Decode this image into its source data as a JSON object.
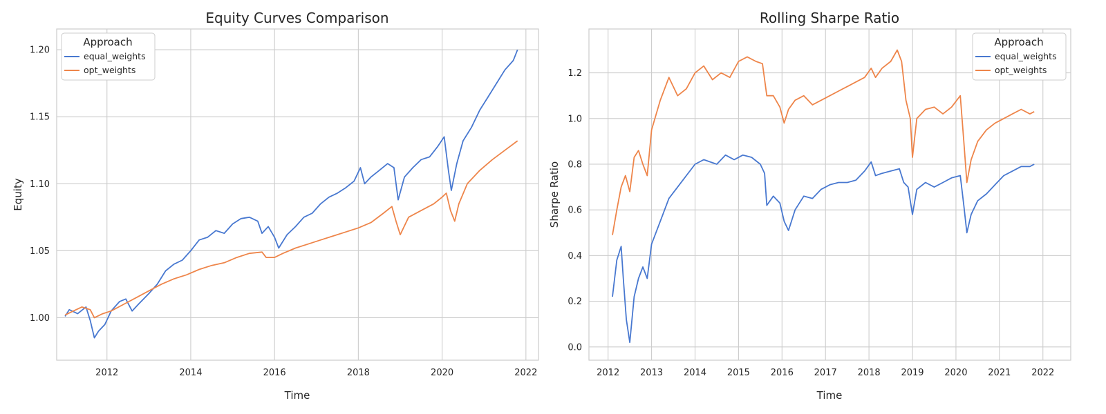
{
  "chart_data": [
    {
      "type": "line",
      "title": "Equity Curves Comparison",
      "xlabel": "Time",
      "ylabel": "Equity",
      "xlim": [
        2010.8,
        2022.3
      ],
      "ylim": [
        0.9683,
        1.2155
      ],
      "xticks": [
        2012,
        2014,
        2016,
        2018,
        2020,
        2022
      ],
      "xtick_labels": [
        "2012",
        "2014",
        "2016",
        "2018",
        "2020",
        "2022"
      ],
      "yticks": [
        1.0,
        1.05,
        1.1,
        1.15,
        1.2
      ],
      "ytick_labels": [
        "1.00",
        "1.05",
        "1.10",
        "1.15",
        "1.20"
      ],
      "grid": true,
      "legend": {
        "title": "Approach",
        "placement": "upper-left"
      },
      "series": [
        {
          "name": "equal_weights",
          "color": "#4878d0",
          "points": [
            [
              2011.0,
              1.001
            ],
            [
              2011.1,
              1.006
            ],
            [
              2011.3,
              1.003
            ],
            [
              2011.5,
              1.008
            ],
            [
              2011.6,
              0.998
            ],
            [
              2011.7,
              0.985
            ],
            [
              2011.8,
              0.99
            ],
            [
              2011.95,
              0.995
            ],
            [
              2012.1,
              1.005
            ],
            [
              2012.3,
              1.012
            ],
            [
              2012.45,
              1.014
            ],
            [
              2012.6,
              1.005
            ],
            [
              2012.75,
              1.01
            ],
            [
              2013.0,
              1.018
            ],
            [
              2013.2,
              1.025
            ],
            [
              2013.4,
              1.035
            ],
            [
              2013.6,
              1.04
            ],
            [
              2013.8,
              1.043
            ],
            [
              2014.0,
              1.05
            ],
            [
              2014.2,
              1.058
            ],
            [
              2014.4,
              1.06
            ],
            [
              2014.6,
              1.065
            ],
            [
              2014.8,
              1.063
            ],
            [
              2015.0,
              1.07
            ],
            [
              2015.2,
              1.074
            ],
            [
              2015.4,
              1.075
            ],
            [
              2015.6,
              1.072
            ],
            [
              2015.7,
              1.063
            ],
            [
              2015.85,
              1.068
            ],
            [
              2016.0,
              1.06
            ],
            [
              2016.1,
              1.052
            ],
            [
              2016.3,
              1.062
            ],
            [
              2016.5,
              1.068
            ],
            [
              2016.7,
              1.075
            ],
            [
              2016.9,
              1.078
            ],
            [
              2017.1,
              1.085
            ],
            [
              2017.3,
              1.09
            ],
            [
              2017.5,
              1.093
            ],
            [
              2017.7,
              1.097
            ],
            [
              2017.9,
              1.102
            ],
            [
              2018.05,
              1.112
            ],
            [
              2018.15,
              1.1
            ],
            [
              2018.3,
              1.105
            ],
            [
              2018.5,
              1.11
            ],
            [
              2018.7,
              1.115
            ],
            [
              2018.85,
              1.112
            ],
            [
              2018.95,
              1.088
            ],
            [
              2019.1,
              1.105
            ],
            [
              2019.3,
              1.112
            ],
            [
              2019.5,
              1.118
            ],
            [
              2019.7,
              1.12
            ],
            [
              2019.9,
              1.128
            ],
            [
              2020.05,
              1.135
            ],
            [
              2020.15,
              1.11
            ],
            [
              2020.22,
              1.095
            ],
            [
              2020.35,
              1.115
            ],
            [
              2020.5,
              1.132
            ],
            [
              2020.7,
              1.142
            ],
            [
              2020.9,
              1.155
            ],
            [
              2021.1,
              1.165
            ],
            [
              2021.3,
              1.175
            ],
            [
              2021.5,
              1.185
            ],
            [
              2021.7,
              1.192
            ],
            [
              2021.8,
              1.2
            ]
          ]
        },
        {
          "name": "opt_weights",
          "color": "#ee854a",
          "points": [
            [
              2011.0,
              1.002
            ],
            [
              2011.2,
              1.005
            ],
            [
              2011.4,
              1.008
            ],
            [
              2011.6,
              1.006
            ],
            [
              2011.7,
              1.0
            ],
            [
              2011.9,
              1.003
            ],
            [
              2012.1,
              1.005
            ],
            [
              2012.4,
              1.01
            ],
            [
              2012.7,
              1.015
            ],
            [
              2013.0,
              1.02
            ],
            [
              2013.3,
              1.025
            ],
            [
              2013.6,
              1.029
            ],
            [
              2013.9,
              1.032
            ],
            [
              2014.2,
              1.036
            ],
            [
              2014.5,
              1.039
            ],
            [
              2014.8,
              1.041
            ],
            [
              2015.1,
              1.045
            ],
            [
              2015.4,
              1.048
            ],
            [
              2015.7,
              1.049
            ],
            [
              2015.8,
              1.045
            ],
            [
              2016.0,
              1.045
            ],
            [
              2016.2,
              1.048
            ],
            [
              2016.5,
              1.052
            ],
            [
              2016.8,
              1.055
            ],
            [
              2017.1,
              1.058
            ],
            [
              2017.4,
              1.061
            ],
            [
              2017.7,
              1.064
            ],
            [
              2018.0,
              1.067
            ],
            [
              2018.3,
              1.071
            ],
            [
              2018.6,
              1.078
            ],
            [
              2018.8,
              1.083
            ],
            [
              2018.9,
              1.072
            ],
            [
              2019.0,
              1.062
            ],
            [
              2019.2,
              1.075
            ],
            [
              2019.5,
              1.08
            ],
            [
              2019.8,
              1.085
            ],
            [
              2020.0,
              1.09
            ],
            [
              2020.1,
              1.093
            ],
            [
              2020.2,
              1.08
            ],
            [
              2020.3,
              1.072
            ],
            [
              2020.4,
              1.085
            ],
            [
              2020.6,
              1.1
            ],
            [
              2020.9,
              1.11
            ],
            [
              2021.2,
              1.118
            ],
            [
              2021.5,
              1.125
            ],
            [
              2021.8,
              1.132
            ]
          ]
        }
      ]
    },
    {
      "type": "line",
      "title": "Rolling Sharpe Ratio",
      "xlabel": "Time",
      "ylabel": "Sharpe Ratio",
      "xlim": [
        2011.56,
        2022.64
      ],
      "ylim": [
        -0.058,
        1.392
      ],
      "xticks": [
        2012,
        2013,
        2014,
        2015,
        2016,
        2017,
        2018,
        2019,
        2020,
        2021,
        2022
      ],
      "xtick_labels": [
        "2012",
        "2013",
        "2014",
        "2015",
        "2016",
        "2017",
        "2018",
        "2019",
        "2020",
        "2021",
        "2022"
      ],
      "yticks": [
        0.0,
        0.2,
        0.4,
        0.6,
        0.8,
        1.0,
        1.2
      ],
      "ytick_labels": [
        "0.0",
        "0.2",
        "0.4",
        "0.6",
        "0.8",
        "1.0",
        "1.2"
      ],
      "grid": true,
      "legend": {
        "title": "Approach",
        "placement": "upper-right"
      },
      "series": [
        {
          "name": "equal_weights",
          "color": "#4878d0",
          "points": [
            [
              2012.1,
              0.22
            ],
            [
              2012.2,
              0.38
            ],
            [
              2012.3,
              0.44
            ],
            [
              2012.35,
              0.3
            ],
            [
              2012.42,
              0.12
            ],
            [
              2012.5,
              0.02
            ],
            [
              2012.6,
              0.22
            ],
            [
              2012.7,
              0.3
            ],
            [
              2012.8,
              0.35
            ],
            [
              2012.9,
              0.3
            ],
            [
              2013.0,
              0.45
            ],
            [
              2013.2,
              0.55
            ],
            [
              2013.4,
              0.65
            ],
            [
              2013.6,
              0.7
            ],
            [
              2013.8,
              0.75
            ],
            [
              2014.0,
              0.8
            ],
            [
              2014.2,
              0.82
            ],
            [
              2014.5,
              0.8
            ],
            [
              2014.7,
              0.84
            ],
            [
              2014.9,
              0.82
            ],
            [
              2015.1,
              0.84
            ],
            [
              2015.3,
              0.83
            ],
            [
              2015.5,
              0.8
            ],
            [
              2015.6,
              0.76
            ],
            [
              2015.65,
              0.62
            ],
            [
              2015.8,
              0.66
            ],
            [
              2015.95,
              0.63
            ],
            [
              2016.05,
              0.55
            ],
            [
              2016.15,
              0.51
            ],
            [
              2016.3,
              0.6
            ],
            [
              2016.5,
              0.66
            ],
            [
              2016.7,
              0.65
            ],
            [
              2016.9,
              0.69
            ],
            [
              2017.1,
              0.71
            ],
            [
              2017.3,
              0.72
            ],
            [
              2017.5,
              0.72
            ],
            [
              2017.7,
              0.73
            ],
            [
              2017.9,
              0.77
            ],
            [
              2018.05,
              0.81
            ],
            [
              2018.15,
              0.75
            ],
            [
              2018.3,
              0.76
            ],
            [
              2018.5,
              0.77
            ],
            [
              2018.7,
              0.78
            ],
            [
              2018.8,
              0.72
            ],
            [
              2018.9,
              0.7
            ],
            [
              2019.0,
              0.58
            ],
            [
              2019.1,
              0.69
            ],
            [
              2019.3,
              0.72
            ],
            [
              2019.5,
              0.7
            ],
            [
              2019.7,
              0.72
            ],
            [
              2019.9,
              0.74
            ],
            [
              2020.1,
              0.75
            ],
            [
              2020.18,
              0.62
            ],
            [
              2020.25,
              0.5
            ],
            [
              2020.35,
              0.58
            ],
            [
              2020.5,
              0.64
            ],
            [
              2020.7,
              0.67
            ],
            [
              2020.9,
              0.71
            ],
            [
              2021.1,
              0.75
            ],
            [
              2021.3,
              0.77
            ],
            [
              2021.5,
              0.79
            ],
            [
              2021.7,
              0.79
            ],
            [
              2021.8,
              0.8
            ]
          ]
        },
        {
          "name": "opt_weights",
          "color": "#ee854a",
          "points": [
            [
              2012.1,
              0.49
            ],
            [
              2012.2,
              0.6
            ],
            [
              2012.3,
              0.7
            ],
            [
              2012.4,
              0.75
            ],
            [
              2012.5,
              0.68
            ],
            [
              2012.6,
              0.83
            ],
            [
              2012.7,
              0.86
            ],
            [
              2012.8,
              0.8
            ],
            [
              2012.9,
              0.75
            ],
            [
              2013.0,
              0.95
            ],
            [
              2013.2,
              1.08
            ],
            [
              2013.4,
              1.18
            ],
            [
              2013.6,
              1.1
            ],
            [
              2013.8,
              1.13
            ],
            [
              2014.0,
              1.2
            ],
            [
              2014.2,
              1.23
            ],
            [
              2014.4,
              1.17
            ],
            [
              2014.6,
              1.2
            ],
            [
              2014.8,
              1.18
            ],
            [
              2015.0,
              1.25
            ],
            [
              2015.2,
              1.27
            ],
            [
              2015.4,
              1.25
            ],
            [
              2015.55,
              1.24
            ],
            [
              2015.65,
              1.1
            ],
            [
              2015.8,
              1.1
            ],
            [
              2015.95,
              1.05
            ],
            [
              2016.05,
              0.98
            ],
            [
              2016.15,
              1.04
            ],
            [
              2016.3,
              1.08
            ],
            [
              2016.5,
              1.1
            ],
            [
              2016.7,
              1.06
            ],
            [
              2016.9,
              1.08
            ],
            [
              2017.1,
              1.1
            ],
            [
              2017.3,
              1.12
            ],
            [
              2017.5,
              1.14
            ],
            [
              2017.7,
              1.16
            ],
            [
              2017.9,
              1.18
            ],
            [
              2018.05,
              1.22
            ],
            [
              2018.15,
              1.18
            ],
            [
              2018.3,
              1.22
            ],
            [
              2018.5,
              1.25
            ],
            [
              2018.65,
              1.3
            ],
            [
              2018.75,
              1.25
            ],
            [
              2018.85,
              1.08
            ],
            [
              2018.95,
              1.0
            ],
            [
              2019.0,
              0.83
            ],
            [
              2019.1,
              1.0
            ],
            [
              2019.3,
              1.04
            ],
            [
              2019.5,
              1.05
            ],
            [
              2019.7,
              1.02
            ],
            [
              2019.9,
              1.05
            ],
            [
              2020.1,
              1.1
            ],
            [
              2020.18,
              0.9
            ],
            [
              2020.25,
              0.72
            ],
            [
              2020.35,
              0.82
            ],
            [
              2020.5,
              0.9
            ],
            [
              2020.7,
              0.95
            ],
            [
              2020.9,
              0.98
            ],
            [
              2021.1,
              1.0
            ],
            [
              2021.3,
              1.02
            ],
            [
              2021.5,
              1.04
            ],
            [
              2021.7,
              1.02
            ],
            [
              2021.8,
              1.03
            ]
          ]
        }
      ]
    }
  ]
}
